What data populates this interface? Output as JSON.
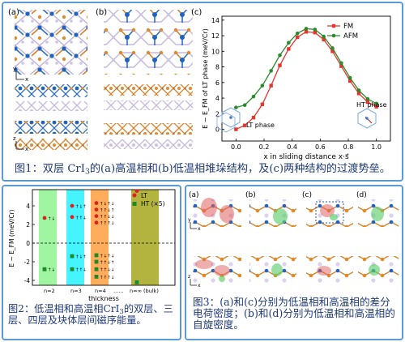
{
  "figure1": {
    "panel_labels": [
      "(a)",
      "(b)",
      "(c)"
    ],
    "caption": {
      "fig": "图1：",
      "pre": "双层 CrI",
      "sub": "3",
      "post": "的(a)高温相和(b)低温相堆垛结构，及(c)两种结构的过渡势垒。"
    },
    "struct_axes": {
      "y": "y",
      "x": "x",
      "z": "z"
    },
    "chart_inset_labels": {
      "lt": "LT phase",
      "ht": "HT phase"
    }
  },
  "figure2": {
    "caption": {
      "pre": "图2：低温相和高温相CrI",
      "sub": "3",
      "post": "的双层、三层、四层及块体层间磁序能量。"
    },
    "layer_labels": [
      "n=2",
      "n=3",
      "n=4",
      "......",
      "n=∞ (bulk)"
    ],
    "xlabel": "thickness",
    "ylabel": "E − E_FM (meV/Cr)",
    "ytick_labels": [
      "4",
      "2",
      "0",
      "-2",
      "-4"
    ],
    "legend": [
      {
        "label": "LT",
        "color": "#e02020"
      },
      {
        "label": "HT (×5)",
        "color": "#1a8a2a"
      }
    ],
    "band_colors": [
      "#8ff58f",
      "#26f2ff",
      "#ff9f40",
      "#a6a61e"
    ],
    "markers": [
      {
        "group": 0,
        "series": "LT",
        "y": 2.7,
        "text": "↑↓"
      },
      {
        "group": 0,
        "series": "HT",
        "y": -2.8,
        "text": "↑↓"
      },
      {
        "group": 1,
        "series": "LT",
        "y": 4.0,
        "text": "↑↓↑"
      },
      {
        "group": 1,
        "series": "LT",
        "y": 2.8,
        "text": "↑↑↓"
      },
      {
        "group": 1,
        "series": "HT",
        "y": -1.4,
        "text": "↑↓↑"
      },
      {
        "group": 1,
        "series": "HT",
        "y": -2.8,
        "text": "↑↑↓"
      },
      {
        "group": 2,
        "series": "LT",
        "y": 4.3,
        "text": "↑↓↑↓"
      },
      {
        "group": 2,
        "series": "LT",
        "y": 3.6,
        "text": "↑↑↓↑"
      },
      {
        "group": 2,
        "series": "LT",
        "y": 2.9,
        "text": "↑↑↓↓"
      },
      {
        "group": 2,
        "series": "LT",
        "y": 2.2,
        "text": "↑↑↑↓"
      },
      {
        "group": 2,
        "series": "HT",
        "y": -1.3,
        "text": "↑↓↑↓"
      },
      {
        "group": 2,
        "series": "HT",
        "y": -2.0,
        "text": "↑↑↓↑"
      },
      {
        "group": 2,
        "series": "HT",
        "y": -2.8,
        "text": "↑↑↓↓"
      },
      {
        "group": 2,
        "series": "HT",
        "y": -3.6,
        "text": "↑↑↑↓"
      },
      {
        "group": 3,
        "series": "LT",
        "y": 5.6,
        "text": ""
      },
      {
        "group": 3,
        "series": "HT",
        "y": -4.2,
        "text": ""
      }
    ]
  },
  "figure3": {
    "panel_labels": [
      "(a)",
      "(b)",
      "(c)",
      "(d)"
    ],
    "axis_labels": [
      "y",
      "x",
      "z",
      "x"
    ],
    "caption": "图3：(a)和(c)分别为低温相和高温相的差分电荷密度；(b)和(d)分别为低温相和高温相的自旋密度。"
  },
  "chart_data": {
    "type": "line",
    "title": "",
    "xlabel": "x in sliding distance x·s⃗",
    "ylabel": "E − E_FM of LT phase (meV/Cr)",
    "xlim": [
      -0.1,
      1.1
    ],
    "ylim": [
      -1.5,
      14.5
    ],
    "x_ticks": [
      0.0,
      0.2,
      0.4,
      0.6,
      0.8,
      1.0
    ],
    "y_ticks": [
      0,
      2,
      4,
      6,
      8,
      10,
      12,
      14
    ],
    "legend_position": "top-right",
    "series": [
      {
        "name": "FM",
        "color": "#e8332f",
        "marker": "square",
        "x": [
          0.0,
          0.0625,
          0.125,
          0.1875,
          0.25,
          0.3125,
          0.375,
          0.4375,
          0.5,
          0.5625,
          0.625,
          0.6875,
          0.75,
          0.8125,
          0.875,
          0.9375,
          1.0
        ],
        "y": [
          0.0,
          0.5,
          1.5,
          3.2,
          5.6,
          8.2,
          10.3,
          11.8,
          12.5,
          12.4,
          11.5,
          10.0,
          8.1,
          6.2,
          4.6,
          3.5,
          2.9
        ]
      },
      {
        "name": "AFM",
        "color": "#2c8a2c",
        "marker": "circle",
        "x": [
          0.0,
          0.0625,
          0.125,
          0.1875,
          0.25,
          0.3125,
          0.375,
          0.4375,
          0.5,
          0.5625,
          0.625,
          0.6875,
          0.75,
          0.8125,
          0.875,
          0.9375,
          1.0
        ],
        "y": [
          2.8,
          3.1,
          4.2,
          5.6,
          7.5,
          9.5,
          11.1,
          12.3,
          12.9,
          12.8,
          11.9,
          10.4,
          8.5,
          6.6,
          5.0,
          3.9,
          3.3
        ]
      }
    ]
  }
}
